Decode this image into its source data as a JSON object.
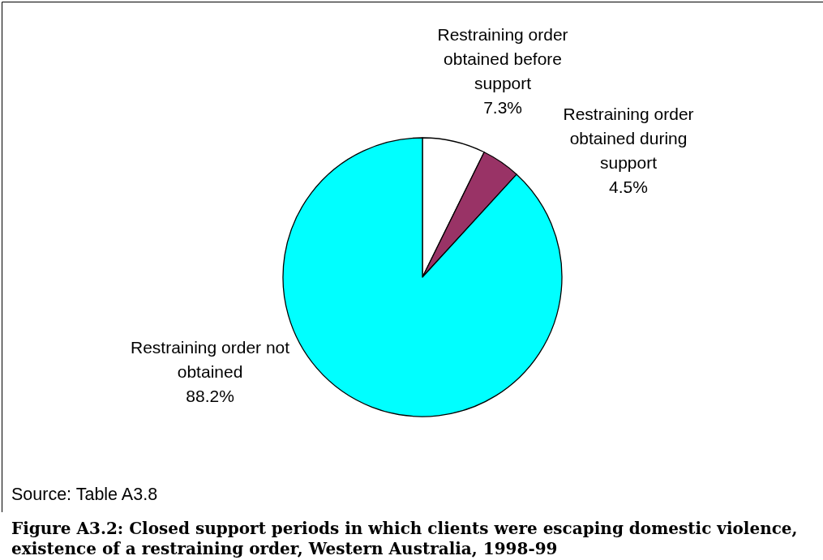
{
  "chart_data": {
    "type": "pie",
    "title": "Figure A3.2: Closed support periods in which clients were escaping domestic violence, existence of a restraining order, Western Australia, 1998-99",
    "categories": [
      "Restraining order obtained before support",
      "Restraining order obtained during support",
      "Restraining order not obtained"
    ],
    "values": [
      7.3,
      4.5,
      88.2
    ],
    "colors": [
      "#ffffff",
      "#993366",
      "#00ffff"
    ],
    "value_labels": [
      "7.3%",
      "4.5%",
      "88.2%"
    ],
    "annotations": [
      "Source: Table A3.8"
    ]
  }
}
